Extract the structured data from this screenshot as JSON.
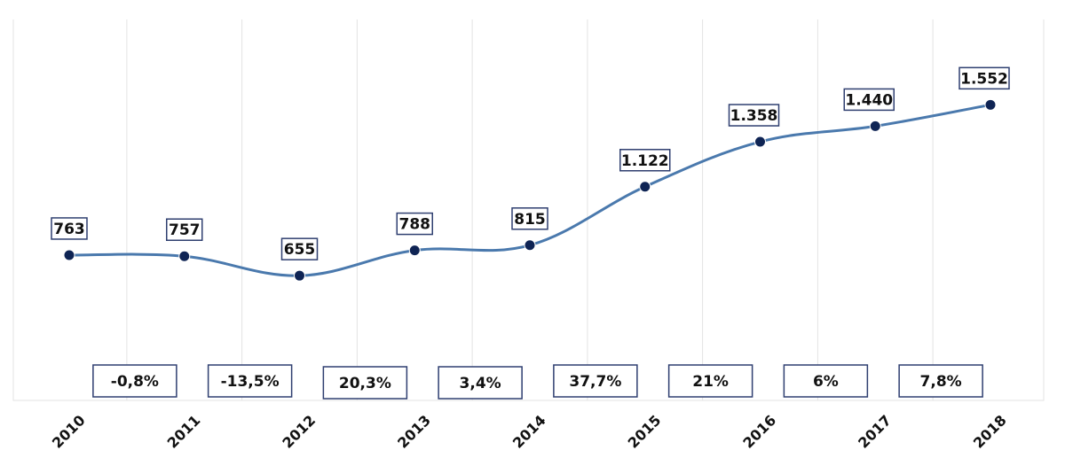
{
  "chart_data": {
    "type": "line",
    "title": "",
    "xlabel": "",
    "ylabel": "",
    "ylim": [
      0,
      2000
    ],
    "grid": {
      "vertical": true,
      "horizontal": false
    },
    "categories": [
      "2010",
      "2011",
      "2012",
      "2013",
      "2014",
      "2015",
      "2016",
      "2017",
      "2018"
    ],
    "series": [
      {
        "values": [
          763,
          757,
          655,
          788,
          815,
          1122,
          1358,
          1440,
          1552
        ],
        "labels": [
          "763",
          "757",
          "655",
          "788",
          "815",
          "1.122",
          "1.358",
          "1.440",
          "1.552"
        ],
        "color": "#4a79ad",
        "marker_color": "#0f2454"
      }
    ],
    "change_labels": [
      "-0,8%",
      "-13,5%",
      "20,3%",
      "3,4%",
      "37,7%",
      "21%",
      "6%",
      "7,8%"
    ],
    "box_border_color": "#2f3f70"
  }
}
